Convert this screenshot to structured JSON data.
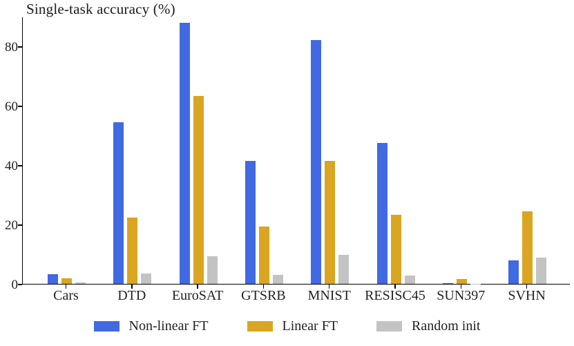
{
  "chart_data": {
    "type": "bar",
    "title": "Single-task accuracy (%)",
    "categories": [
      "Cars",
      "DTD",
      "EuroSAT",
      "GTSRB",
      "MNIST",
      "RESISC45",
      "SUN397",
      "SVHN"
    ],
    "series": [
      {
        "name": "Non-linear FT",
        "color": "#4169E1",
        "values": [
          3.3,
          54.5,
          88.0,
          41.3,
          82.0,
          47.4,
          0.3,
          7.9
        ]
      },
      {
        "name": "Linear FT",
        "color": "#DAA520",
        "values": [
          1.9,
          22.3,
          63.3,
          19.2,
          41.5,
          23.2,
          1.6,
          24.4
        ]
      },
      {
        "name": "Random init",
        "color": "#C3C3C3",
        "values": [
          0.4,
          3.6,
          9.2,
          3.1,
          9.7,
          2.9,
          0.1,
          8.8
        ]
      }
    ],
    "xlabel": "",
    "ylabel": "",
    "ylim": [
      0,
      90
    ],
    "yticks": [
      0,
      20,
      40,
      60,
      80
    ],
    "grid": false,
    "legend_position": "bottom",
    "axis_color": "#000000",
    "background": "#ffffff"
  }
}
